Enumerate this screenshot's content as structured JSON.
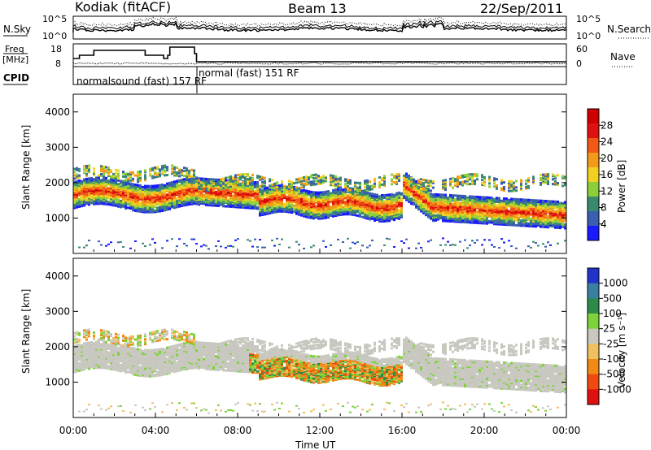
{
  "header": {
    "station": "Kodiak (fitACF)",
    "beam": "Beam 13",
    "date": "22/Sep/2011"
  },
  "summary_panels": {
    "noise": {
      "left_label": "N.Sky",
      "right_label": "N.Search",
      "left_ticks": [
        "10^5",
        "10^0"
      ],
      "right_ticks": [
        "10^5",
        "10^0"
      ]
    },
    "freq": {
      "left_label_line1": "Freq",
      "left_label_line2": "[MHz]",
      "right_label": "Nave",
      "left_ticks": [
        "18",
        "8"
      ],
      "right_ticks": [
        "60",
        "0"
      ]
    },
    "cpid": {
      "label": "CPID",
      "segments": [
        {
          "text": "normalsound (fast) 157 RF",
          "start_hour": 0
        },
        {
          "text": "normal (fast) 151 RF",
          "start_hour": 6
        }
      ]
    }
  },
  "chart_data": [
    {
      "type": "heatmap",
      "name": "power",
      "ylabel": "Slant Range [km]",
      "xlabel": "Time UT",
      "xlim_hours": [
        0,
        24
      ],
      "ylim_km": [
        0,
        4500
      ],
      "yticks": [
        1000,
        2000,
        3000,
        4000
      ],
      "xticks": [
        "00:00",
        "04:00",
        "08:00",
        "12:00",
        "16:00",
        "20:00",
        "00:00"
      ],
      "colorbar": {
        "label": "Power [dB]",
        "ticks": [
          "4",
          "8",
          "12",
          "16",
          "20",
          "24",
          "28"
        ],
        "colors": [
          "#1a1aff",
          "#3a5fb0",
          "#3a8a70",
          "#8ccf3a",
          "#f0d020",
          "#f39a1a",
          "#f05a14",
          "#e01010",
          "#d00000"
        ]
      },
      "features": [
        {
          "desc": "main F-region band",
          "start_hour": 0,
          "end_hour": 24,
          "range_start_km": 1700,
          "range_end_km": 1050
        },
        {
          "desc": "upper band",
          "start_hour": 0,
          "end_hour": 24,
          "range_km": 2050
        },
        {
          "desc": "near-range ground scatter",
          "range_km": 250
        }
      ]
    },
    {
      "type": "heatmap",
      "name": "velocity",
      "ylabel": "Slant Range [km]",
      "xlabel": "Time UT",
      "xlim_hours": [
        0,
        24
      ],
      "ylim_km": [
        0,
        4500
      ],
      "yticks": [
        1000,
        2000,
        3000,
        4000
      ],
      "xticks": [
        "00:00",
        "04:00",
        "08:00",
        "12:00",
        "16:00",
        "20:00",
        "00:00"
      ],
      "colorbar": {
        "label": "Velocity [m s⁻¹]",
        "ticks": [
          "1000",
          "500",
          "100",
          "25",
          "-25",
          "-100",
          "-500",
          "-1000"
        ],
        "colors": [
          "#2233cc",
          "#3a7fa0",
          "#2e8a4a",
          "#7ed23a",
          "#c8c8c0",
          "#f0c060",
          "#f08a14",
          "#f04a10",
          "#e01010"
        ]
      }
    }
  ]
}
